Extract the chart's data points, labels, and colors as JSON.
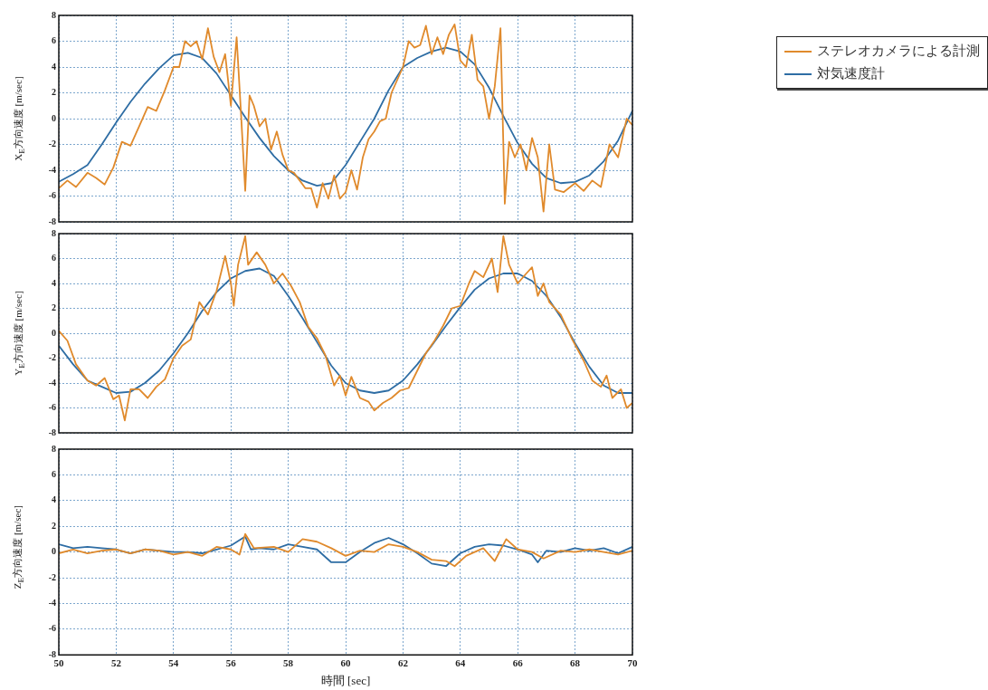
{
  "chart_data": [
    {
      "type": "line",
      "ylabel": "X$_{E}$方向速度 [m/sec]",
      "xlim": [
        50,
        70
      ],
      "xticks": [
        50,
        52,
        54,
        56,
        58,
        60,
        62,
        64,
        66,
        68,
        70
      ],
      "ylim": [
        -8,
        8
      ],
      "yticks": [
        -8,
        -6,
        -4,
        -2,
        0,
        2,
        4,
        6,
        8
      ],
      "tick_labels": "y",
      "grid": true,
      "legend": "top right",
      "marker": "none",
      "series": [
        {
          "name": "ステレオカメラによる計測",
          "color": "#e08a2c",
          "x": [
            50,
            50.3,
            50.6,
            51,
            51.3,
            51.6,
            51.9,
            52.2,
            52.5,
            52.8,
            53.1,
            53.4,
            53.7,
            54,
            54.2,
            54.4,
            54.6,
            54.8,
            55,
            55.2,
            55.4,
            55.6,
            55.8,
            56,
            56.2,
            56.35,
            56.5,
            56.65,
            56.8,
            57,
            57.2,
            57.4,
            57.6,
            57.8,
            58,
            58.2,
            58.4,
            58.6,
            58.8,
            59,
            59.2,
            59.4,
            59.6,
            59.8,
            60,
            60.2,
            60.4,
            60.6,
            60.8,
            61,
            61.2,
            61.4,
            61.6,
            61.8,
            62,
            62.2,
            62.4,
            62.6,
            62.8,
            63,
            63.2,
            63.4,
            63.6,
            63.8,
            64,
            64.2,
            64.4,
            64.6,
            64.8,
            65,
            65.2,
            65.4,
            65.55,
            65.7,
            65.9,
            66.1,
            66.3,
            66.5,
            66.7,
            66.9,
            67.1,
            67.3,
            67.6,
            68,
            68.3,
            68.6,
            68.9,
            69.2,
            69.5,
            69.8,
            70
          ],
          "values": [
            -5.4,
            -4.8,
            -5.3,
            -4.2,
            -4.6,
            -5.1,
            -3.8,
            -1.8,
            -2.1,
            -0.6,
            0.9,
            0.6,
            2.2,
            4,
            4,
            6,
            5.6,
            6,
            4.6,
            7,
            4.8,
            3.6,
            5,
            1,
            6.3,
            0.5,
            -5.6,
            1.8,
            1,
            -0.6,
            0,
            -2.4,
            -1,
            -2.8,
            -4,
            -4.2,
            -4.8,
            -5.4,
            -5.4,
            -6.9,
            -5,
            -6.2,
            -4.4,
            -6.2,
            -5.7,
            -4,
            -5.5,
            -3,
            -1.6,
            -1,
            -0.2,
            0,
            2,
            3,
            4,
            6,
            5.5,
            5.7,
            7.2,
            5,
            6.3,
            5,
            6.5,
            7.3,
            4.5,
            4,
            6.5,
            3,
            2.5,
            0,
            2.5,
            7,
            -6.6,
            -1.8,
            -3,
            -2,
            -4,
            -1.5,
            -3,
            -7.2,
            -2,
            -5.5,
            -5.7,
            -5,
            -5.6,
            -4.8,
            -5.3,
            -2,
            -3,
            0,
            -0.5
          ]
        },
        {
          "name": "対気速度計",
          "color": "#2e6da4",
          "x": [
            50,
            50.5,
            51,
            51.5,
            52,
            52.5,
            53,
            53.5,
            54,
            54.5,
            55,
            55.5,
            56,
            56.5,
            57,
            57.5,
            58,
            58.5,
            59,
            59.5,
            60,
            60.5,
            61,
            61.5,
            62,
            62.5,
            63,
            63.5,
            64,
            64.5,
            65,
            65.5,
            66,
            66.5,
            67,
            67.5,
            68,
            68.5,
            69,
            69.5,
            70
          ],
          "values": [
            -4.9,
            -4.3,
            -3.6,
            -2,
            -0.3,
            1.3,
            2.7,
            3.9,
            4.9,
            5.1,
            4.7,
            3.5,
            1.8,
            0.1,
            -1.5,
            -2.9,
            -4,
            -4.8,
            -5.2,
            -5,
            -3.6,
            -1.8,
            0,
            2.2,
            4,
            4.7,
            5.2,
            5.5,
            5.2,
            4.2,
            2.4,
            0.2,
            -1.9,
            -3.5,
            -4.6,
            -5,
            -4.9,
            -4.4,
            -3.3,
            -1.7,
            0.6
          ]
        }
      ]
    },
    {
      "type": "line",
      "ylabel": "Y$_{E}$方向速度 [m/sec]",
      "xlim": [
        50,
        70
      ],
      "xticks": [
        50,
        52,
        54,
        56,
        58,
        60,
        62,
        64,
        66,
        68,
        70
      ],
      "ylim": [
        -8,
        8
      ],
      "yticks": [
        -8,
        -6,
        -4,
        -2,
        0,
        2,
        4,
        6,
        8
      ],
      "tick_labels": "y",
      "grid": true,
      "marker": "none",
      "series": [
        {
          "color": "#e08a2c",
          "x": [
            50,
            50.3,
            50.6,
            51,
            51.3,
            51.6,
            51.9,
            52.1,
            52.3,
            52.5,
            52.8,
            53.1,
            53.4,
            53.7,
            54,
            54.3,
            54.6,
            54.9,
            55.2,
            55.5,
            55.8,
            56,
            56.1,
            56.25,
            56.5,
            56.6,
            56.9,
            57.2,
            57.5,
            57.8,
            58.1,
            58.4,
            58.7,
            59,
            59.3,
            59.6,
            59.8,
            60,
            60.2,
            60.5,
            60.8,
            61,
            61.3,
            61.6,
            61.9,
            62.2,
            62.5,
            62.8,
            63.1,
            63.4,
            63.7,
            64,
            64.3,
            64.5,
            64.8,
            65.1,
            65.3,
            65.5,
            65.7,
            66,
            66.3,
            66.5,
            66.7,
            66.9,
            67.1,
            67.5,
            67.9,
            68.3,
            68.6,
            68.9,
            69.1,
            69.3,
            69.6,
            69.8,
            70
          ],
          "values": [
            0.2,
            -0.6,
            -2.5,
            -3.8,
            -4.2,
            -3.6,
            -5.3,
            -5,
            -7,
            -4.5,
            -4.5,
            -5.2,
            -4.3,
            -3.7,
            -2,
            -1,
            -0.5,
            2.5,
            1.5,
            3.4,
            6.2,
            4,
            2.2,
            5.5,
            7.8,
            5.5,
            6.5,
            5.5,
            4,
            4.8,
            3.8,
            2.5,
            0.5,
            -0.4,
            -1.8,
            -4.2,
            -3.4,
            -5,
            -3.5,
            -5.2,
            -5.5,
            -6.2,
            -5.6,
            -5.2,
            -4.6,
            -4.4,
            -3,
            -1.6,
            -0.6,
            0.6,
            2,
            2.2,
            4,
            5,
            4.5,
            6,
            3.3,
            7.8,
            5.5,
            4,
            4.8,
            5.3,
            3,
            4,
            2.5,
            1.5,
            -0.5,
            -2.2,
            -3.8,
            -4.3,
            -3.4,
            -5.2,
            -4.5,
            -6,
            -5.6
          ]
        },
        {
          "color": "#2e6da4",
          "x": [
            50,
            50.5,
            51,
            51.5,
            52,
            52.5,
            53,
            53.5,
            54,
            54.5,
            55,
            55.5,
            56,
            56.5,
            57,
            57.5,
            58,
            58.5,
            59,
            59.5,
            60,
            60.5,
            61,
            61.5,
            62,
            62.5,
            63,
            63.5,
            64,
            64.5,
            65,
            65.5,
            66,
            66.5,
            67,
            67.5,
            68,
            68.5,
            69,
            69.5,
            70
          ],
          "values": [
            -1,
            -2.5,
            -3.8,
            -4.3,
            -4.8,
            -4.7,
            -4,
            -3,
            -1.6,
            0,
            1.8,
            3.3,
            4.4,
            5,
            5.2,
            4.6,
            3,
            1.2,
            -0.7,
            -2.6,
            -4,
            -4.6,
            -4.8,
            -4.6,
            -3.8,
            -2.5,
            -1,
            0.6,
            2.1,
            3.5,
            4.4,
            4.8,
            4.8,
            4.2,
            3,
            1.3,
            -0.8,
            -2.7,
            -4.2,
            -4.8,
            -4.8
          ]
        }
      ]
    },
    {
      "type": "line",
      "ylabel": "Z$_{E}$方向速度 [m/sec]",
      "xlabel": "時間 [sec]",
      "xlim": [
        50,
        70
      ],
      "xticks": [
        50,
        52,
        54,
        56,
        58,
        60,
        62,
        64,
        66,
        68,
        70
      ],
      "ylim": [
        -8,
        8
      ],
      "yticks": [
        -8,
        -6,
        -4,
        -2,
        0,
        2,
        4,
        6,
        8
      ],
      "grid": true,
      "marker": "none",
      "series": [
        {
          "color": "#e08a2c",
          "x": [
            50,
            50.5,
            51,
            51.5,
            52,
            52.5,
            53,
            53.5,
            54,
            54.5,
            55,
            55.5,
            56,
            56.3,
            56.5,
            56.8,
            57.5,
            58,
            58.5,
            59,
            59.5,
            60,
            60.5,
            61,
            61.5,
            62,
            62.5,
            63,
            63.5,
            63.8,
            64.2,
            64.8,
            65.2,
            65.6,
            66,
            66.5,
            66.9,
            67.5,
            68,
            68.5,
            69,
            69.5,
            70
          ],
          "values": [
            -0.1,
            0.2,
            -0.1,
            0.1,
            0.2,
            -0.1,
            0.2,
            0.1,
            -0.2,
            0,
            -0.3,
            0.4,
            0.2,
            -0.2,
            1.4,
            0.3,
            0.4,
            0,
            1,
            0.8,
            0.3,
            -0.3,
            0.1,
            0,
            0.6,
            0.4,
            0,
            -0.6,
            -0.7,
            -1.1,
            -0.3,
            0.3,
            -0.7,
            1,
            0.2,
            0,
            -0.5,
            0.1,
            0,
            0.2,
            0,
            -0.2,
            0.1
          ]
        },
        {
          "color": "#2e6da4",
          "x": [
            50,
            50.5,
            51,
            51.5,
            52,
            52.5,
            53,
            53.5,
            54,
            54.5,
            55,
            55.5,
            56,
            56.5,
            56.7,
            57,
            57.5,
            58,
            58.5,
            59,
            59.5,
            60,
            60.5,
            61,
            61.5,
            62,
            62.5,
            63,
            63.5,
            64,
            64.5,
            65,
            65.5,
            66,
            66.5,
            66.7,
            67,
            67.5,
            68,
            68.5,
            69,
            69.5,
            70
          ],
          "values": [
            0.6,
            0.3,
            0.4,
            0.3,
            0.2,
            -0.1,
            0.2,
            0.1,
            0,
            0,
            -0.1,
            0.2,
            0.5,
            1.2,
            0.2,
            0.3,
            0.2,
            0.6,
            0.4,
            0.2,
            -0.8,
            -0.8,
            0,
            0.7,
            1.1,
            0.6,
            -0.1,
            -0.9,
            -1.1,
            -0.1,
            0.4,
            0.6,
            0.5,
            0.2,
            -0.2,
            -0.8,
            0.1,
            0,
            0.3,
            0.1,
            0.3,
            -0.1,
            0.4
          ]
        }
      ]
    }
  ]
}
